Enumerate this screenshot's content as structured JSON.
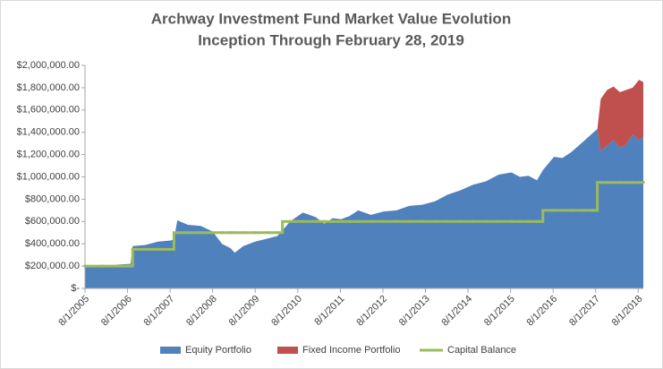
{
  "chart_data": {
    "type": "stacked-area-step",
    "title": "Archway Investment Fund Market Value Evolution",
    "subtitle": "Inception Through February 28, 2019",
    "x": [
      2005.58,
      2006.0,
      2006.4,
      2006.65,
      2006.7,
      2007.0,
      2007.3,
      2007.6,
      2007.67,
      2007.75,
      2008.0,
      2008.3,
      2008.58,
      2008.8,
      2009.0,
      2009.1,
      2009.3,
      2009.58,
      2009.9,
      2010.1,
      2010.22,
      2010.4,
      2010.7,
      2011.0,
      2011.2,
      2011.4,
      2011.6,
      2011.8,
      2012.0,
      2012.3,
      2012.6,
      2012.9,
      2013.2,
      2013.5,
      2013.8,
      2014.1,
      2014.4,
      2014.7,
      2015.0,
      2015.3,
      2015.6,
      2015.8,
      2016.0,
      2016.2,
      2016.34,
      2016.6,
      2016.8,
      2017.0,
      2017.3,
      2017.5,
      2017.62,
      2017.7,
      2017.85,
      2018.0,
      2018.15,
      2018.3,
      2018.45,
      2018.6,
      2018.7
    ],
    "series": [
      {
        "name": "Equity Portfolio",
        "color": "#4f81bd",
        "kind": "area",
        "values": [
          200000,
          200000,
          215000,
          220000,
          380000,
          390000,
          420000,
          430000,
          440000,
          610000,
          570000,
          560000,
          510000,
          400000,
          360000,
          320000,
          380000,
          420000,
          450000,
          470000,
          520000,
          600000,
          680000,
          640000,
          580000,
          630000,
          620000,
          650000,
          700000,
          660000,
          690000,
          700000,
          740000,
          750000,
          780000,
          840000,
          880000,
          930000,
          960000,
          1020000,
          1040000,
          1000000,
          1010000,
          970000,
          1060000,
          1180000,
          1170000,
          1220000,
          1320000,
          1390000,
          1430000,
          1230000,
          1280000,
          1330000,
          1260000,
          1290000,
          1380000,
          1330000,
          1360000
        ]
      },
      {
        "name": "Fixed Income Portfolio",
        "color": "#c0504d",
        "kind": "area",
        "values": [
          null,
          null,
          null,
          null,
          null,
          null,
          null,
          null,
          null,
          null,
          null,
          null,
          null,
          null,
          null,
          null,
          null,
          null,
          null,
          null,
          null,
          null,
          null,
          null,
          null,
          null,
          null,
          null,
          null,
          null,
          null,
          null,
          null,
          null,
          null,
          null,
          null,
          null,
          null,
          null,
          null,
          null,
          null,
          null,
          null,
          null,
          null,
          null,
          null,
          null,
          0,
          470000,
          500000,
          480000,
          500000,
          490000,
          420000,
          540000,
          490000
        ]
      },
      {
        "name": "Capital Balance",
        "color": "#9bbb59",
        "kind": "step",
        "values": [
          200000,
          200000,
          200000,
          200000,
          350000,
          350000,
          350000,
          350000,
          500000,
          500000,
          500000,
          500000,
          500000,
          500000,
          500000,
          500000,
          500000,
          500000,
          500000,
          500000,
          600000,
          600000,
          600000,
          600000,
          600000,
          600000,
          600000,
          600000,
          600000,
          600000,
          600000,
          600000,
          600000,
          600000,
          600000,
          600000,
          600000,
          600000,
          600000,
          600000,
          600000,
          600000,
          600000,
          600000,
          700000,
          700000,
          700000,
          700000,
          700000,
          700000,
          950000,
          950000,
          950000,
          950000,
          950000,
          950000,
          950000,
          950000,
          950000
        ]
      }
    ],
    "xlim": [
      2005.58,
      2018.7
    ],
    "xticks": [
      {
        "value": 2005.58,
        "label": "8/1/2005"
      },
      {
        "value": 2006.58,
        "label": "8/1/2006"
      },
      {
        "value": 2007.58,
        "label": "8/1/2007"
      },
      {
        "value": 2008.58,
        "label": "8/1/2008"
      },
      {
        "value": 2009.58,
        "label": "8/1/2009"
      },
      {
        "value": 2010.58,
        "label": "8/1/2010"
      },
      {
        "value": 2011.58,
        "label": "8/1/2011"
      },
      {
        "value": 2012.58,
        "label": "8/1/2012"
      },
      {
        "value": 2013.58,
        "label": "8/1/2013"
      },
      {
        "value": 2014.58,
        "label": "8/1/2014"
      },
      {
        "value": 2015.58,
        "label": "8/1/2015"
      },
      {
        "value": 2016.58,
        "label": "8/1/2016"
      },
      {
        "value": 2017.58,
        "label": "8/1/2017"
      },
      {
        "value": 2018.58,
        "label": "8/1/2018"
      }
    ],
    "ylim": [
      0,
      2000000
    ],
    "yticks": [
      {
        "value": 0,
        "label": "$-"
      },
      {
        "value": 200000,
        "label": "$200,000.00"
      },
      {
        "value": 400000,
        "label": "$400,000.00"
      },
      {
        "value": 600000,
        "label": "$600,000.00"
      },
      {
        "value": 800000,
        "label": "$800,000.00"
      },
      {
        "value": 1000000,
        "label": "$1,000,000.00"
      },
      {
        "value": 1200000,
        "label": "$1,200,000.00"
      },
      {
        "value": 1400000,
        "label": "$1,400,000.00"
      },
      {
        "value": 1600000,
        "label": "$1,600,000.00"
      },
      {
        "value": 1800000,
        "label": "$1,800,000.00"
      },
      {
        "value": 2000000,
        "label": "$2,000,000.00"
      }
    ],
    "grid": false,
    "legend": "bottom"
  }
}
